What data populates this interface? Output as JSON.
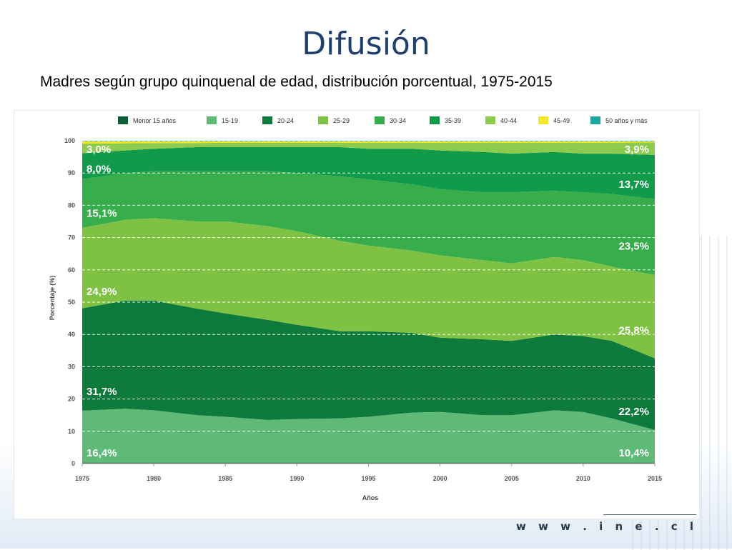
{
  "slide": {
    "title": "Difusión",
    "subtitle": "Madres según grupo quinquenal de edad, distribución porcentual, 1975-2015",
    "footer_url": "w w w . i n e . c l"
  },
  "colors": {
    "menor15": "#0d5e34",
    "a15_19": "#5fb977",
    "a20_24": "#0e7a3c",
    "a25_29": "#7fc243",
    "a30_34": "#38ad4b",
    "a35_39": "#129a4b",
    "a40_44": "#8dcb4f",
    "a45_49": "#f2e829",
    "a50": "#1ea7a0"
  },
  "chart_data": {
    "type": "area",
    "stacked": true,
    "xlabel": "Años",
    "ylabel": "Porcentaje (%)",
    "ylim": [
      0,
      100
    ],
    "xlim": [
      1975,
      2015
    ],
    "x_ticks": [
      1975,
      1980,
      1985,
      1990,
      1995,
      2000,
      2005,
      2010,
      2015
    ],
    "y_ticks": [
      0,
      10,
      20,
      30,
      40,
      50,
      60,
      70,
      80,
      90,
      100
    ],
    "grid": "horizontal dashed",
    "legend_position": "top",
    "legend": [
      "Menor 15 años",
      "15-19",
      "20-24",
      "25-29",
      "30-34",
      "35-39",
      "40-44",
      "45-49",
      "50 años y más"
    ],
    "x": [
      1975,
      1978,
      1980,
      1983,
      1985,
      1988,
      1990,
      1993,
      1995,
      1998,
      2000,
      2003,
      2005,
      2008,
      2010,
      2012,
      2015
    ],
    "boundaries": [
      {
        "name": "Menor 15 años",
        "values": [
          0.3,
          0.3,
          0.3,
          0.3,
          0.3,
          0.3,
          0.3,
          0.3,
          0.3,
          0.3,
          0.3,
          0.3,
          0.3,
          0.3,
          0.3,
          0.3,
          0.3
        ]
      },
      {
        "name": "15-19",
        "values": [
          16.4,
          17,
          16.5,
          15,
          14.5,
          13.5,
          13.8,
          14,
          14.5,
          15.8,
          16,
          15,
          15,
          16.5,
          16,
          14,
          10.4
        ]
      },
      {
        "name": "20-24",
        "values": [
          48.1,
          50.5,
          50.5,
          48,
          46.5,
          44.5,
          43,
          41,
          41,
          40.5,
          39,
          38.5,
          38,
          40,
          39.5,
          38,
          32.6
        ]
      },
      {
        "name": "25-29",
        "values": [
          73,
          75.5,
          76,
          75,
          75,
          73.5,
          72,
          69,
          67.5,
          66,
          64.5,
          63,
          62,
          64,
          63,
          61,
          58.4
        ]
      },
      {
        "name": "30-34",
        "values": [
          88.1,
          90,
          90.5,
          90.5,
          90.5,
          90.5,
          90,
          89,
          88,
          86.5,
          85,
          84,
          84,
          84.5,
          84,
          83.5,
          81.9
        ]
      },
      {
        "name": "35-39",
        "values": [
          96.1,
          97,
          97.5,
          98,
          98,
          98,
          98,
          98,
          97.5,
          97.5,
          97,
          96.5,
          96,
          96.5,
          96,
          96,
          95.6
        ]
      },
      {
        "name": "40-44",
        "values": [
          99.1,
          99.2,
          99.3,
          99.3,
          99.4,
          99.4,
          99.4,
          99.4,
          99.4,
          99.4,
          99.4,
          99.4,
          99.4,
          99.4,
          99.4,
          99.4,
          99.5
        ]
      },
      {
        "name": "45-49",
        "values": [
          99.8,
          99.8,
          99.8,
          99.8,
          99.8,
          99.8,
          99.8,
          99.8,
          99.8,
          99.8,
          99.8,
          99.8,
          99.8,
          99.8,
          99.8,
          99.8,
          99.8
        ]
      },
      {
        "name": "50 años y más",
        "values": [
          100,
          100,
          100,
          100,
          100,
          100,
          100,
          100,
          100,
          100,
          100,
          100,
          100,
          100,
          100,
          100,
          100
        ]
      }
    ],
    "annotations": [
      {
        "text": "3,0%",
        "x": 1975,
        "y": 97.6,
        "side": "left"
      },
      {
        "text": "8,0%",
        "x": 1975,
        "y": 91.5,
        "side": "left"
      },
      {
        "text": "15,1%",
        "x": 1975,
        "y": 77.8,
        "side": "left"
      },
      {
        "text": "24,9%",
        "x": 1975,
        "y": 53.5,
        "side": "left"
      },
      {
        "text": "31,7%",
        "x": 1975,
        "y": 22.6,
        "side": "left"
      },
      {
        "text": "16,4%",
        "x": 1975,
        "y": 3.5,
        "side": "left"
      },
      {
        "text": "3,9%",
        "x": 2015,
        "y": 97.6,
        "side": "right"
      },
      {
        "text": "13,7%",
        "x": 2015,
        "y": 86.7,
        "side": "right"
      },
      {
        "text": "23,5%",
        "x": 2015,
        "y": 67.6,
        "side": "right"
      },
      {
        "text": "25,8%",
        "x": 2015,
        "y": 41.5,
        "side": "right"
      },
      {
        "text": "22,2%",
        "x": 2015,
        "y": 16.4,
        "side": "right"
      },
      {
        "text": "10,4%",
        "x": 2015,
        "y": 3.5,
        "side": "right"
      }
    ]
  }
}
